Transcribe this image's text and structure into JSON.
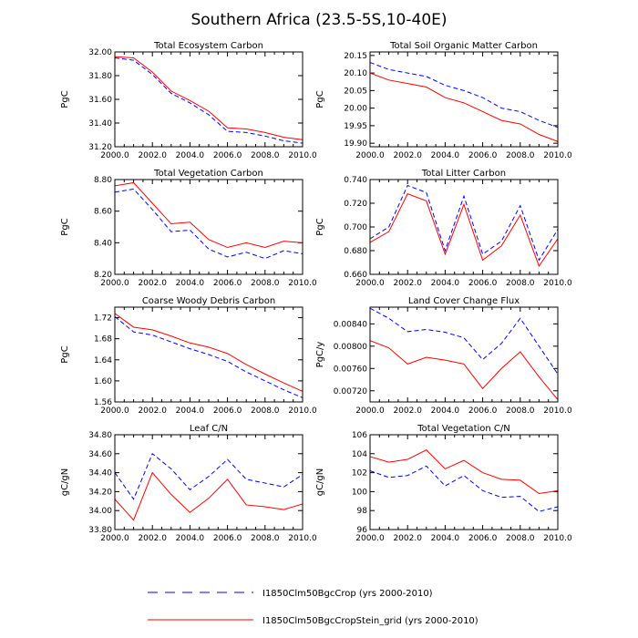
{
  "figure": {
    "title": "Southern Africa (23.5-5S,10-40E)"
  },
  "legend": {
    "entries": [
      {
        "label": "I1850Clm50BgcCrop (yrs 2000-2010)",
        "color": "#0000ff",
        "style": "dashed"
      },
      {
        "label": "I1850Clm50BgcCropStein_grid (yrs 2000-2010)",
        "color": "#ff0000",
        "style": "solid"
      }
    ]
  },
  "chart_data": [
    {
      "type": "line",
      "title": "Total Ecosystem Carbon",
      "ylabel": "PgC",
      "xlim": [
        2000,
        2010
      ],
      "ylim": [
        31.2,
        32.0
      ],
      "xticks": [
        "2000.0",
        "2002.0",
        "2004.0",
        "2006.0",
        "2008.0",
        "2010.0"
      ],
      "yticks": [
        "31.20",
        "31.40",
        "31.60",
        "31.80",
        "32.00"
      ],
      "x": [
        2000,
        2001,
        2002,
        2003,
        2004,
        2005,
        2006,
        2007,
        2008,
        2009,
        2010
      ],
      "series": [
        {
          "values": [
            31.95,
            31.93,
            31.81,
            31.65,
            31.57,
            31.47,
            31.33,
            31.32,
            31.29,
            31.25,
            31.23
          ]
        },
        {
          "values": [
            31.96,
            31.95,
            31.83,
            31.67,
            31.59,
            31.5,
            31.36,
            31.35,
            31.32,
            31.28,
            31.26
          ]
        }
      ]
    },
    {
      "type": "line",
      "title": "Total Soil Organic Matter Carbon",
      "ylabel": "PgC",
      "xlim": [
        2000,
        2010
      ],
      "ylim": [
        19.89,
        20.16
      ],
      "xticks": [
        "2000.0",
        "2002.0",
        "2004.0",
        "2006.0",
        "2008.0",
        "2010.0"
      ],
      "yticks": [
        "19.90",
        "19.95",
        "20.00",
        "20.05",
        "20.10",
        "20.15"
      ],
      "x": [
        2000,
        2001,
        2002,
        2003,
        2004,
        2005,
        2006,
        2007,
        2008,
        2009,
        2010
      ],
      "series": [
        {
          "values": [
            20.13,
            20.11,
            20.1,
            20.09,
            20.065,
            20.05,
            20.03,
            20.0,
            19.99,
            19.965,
            19.945
          ]
        },
        {
          "values": [
            20.1,
            20.08,
            20.07,
            20.06,
            20.03,
            20.015,
            19.99,
            19.965,
            19.955,
            19.925,
            19.905
          ]
        }
      ]
    },
    {
      "type": "line",
      "title": "Total Vegetation Carbon",
      "ylabel": "PgC",
      "xlim": [
        2000,
        2010
      ],
      "ylim": [
        8.2,
        8.8
      ],
      "xticks": [
        "2000.0",
        "2002.0",
        "2004.0",
        "2006.0",
        "2008.0",
        "2010.0"
      ],
      "yticks": [
        "8.20",
        "8.40",
        "8.60",
        "8.80"
      ],
      "x": [
        2000,
        2001,
        2002,
        2003,
        2004,
        2005,
        2006,
        2007,
        2008,
        2009,
        2010
      ],
      "series": [
        {
          "values": [
            8.72,
            8.74,
            8.61,
            8.47,
            8.48,
            8.36,
            8.31,
            8.34,
            8.3,
            8.35,
            8.33
          ]
        },
        {
          "values": [
            8.76,
            8.78,
            8.65,
            8.52,
            8.53,
            8.42,
            8.37,
            8.4,
            8.37,
            8.41,
            8.4
          ]
        }
      ]
    },
    {
      "type": "line",
      "title": "Total Litter Carbon",
      "ylabel": "PgC",
      "xlim": [
        2000,
        2010
      ],
      "ylim": [
        0.66,
        0.74
      ],
      "xticks": [
        "2000.0",
        "2002.0",
        "2004.0",
        "2006.0",
        "2008.0",
        "2010.0"
      ],
      "yticks": [
        "0.660",
        "0.680",
        "0.700",
        "0.720",
        "0.740"
      ],
      "x": [
        2000,
        2001,
        2002,
        2003,
        2004,
        2005,
        2006,
        2007,
        2008,
        2009,
        2010
      ],
      "series": [
        {
          "values": [
            0.69,
            0.7,
            0.735,
            0.729,
            0.68,
            0.726,
            0.677,
            0.688,
            0.718,
            0.672,
            0.698
          ]
        },
        {
          "values": [
            0.687,
            0.696,
            0.728,
            0.722,
            0.677,
            0.719,
            0.672,
            0.684,
            0.71,
            0.667,
            0.69
          ]
        }
      ]
    },
    {
      "type": "line",
      "title": "Coarse Woody Debris Carbon",
      "ylabel": "PgC",
      "xlim": [
        2000,
        2010
      ],
      "ylim": [
        1.56,
        1.74
      ],
      "xticks": [
        "2000.0",
        "2002.0",
        "2004.0",
        "2006.0",
        "2008.0",
        "2010.0"
      ],
      "yticks": [
        "1.56",
        "1.60",
        "1.64",
        "1.68",
        "1.72"
      ],
      "x": [
        2000,
        2001,
        2002,
        2003,
        2004,
        2005,
        2006,
        2007,
        2008,
        2009,
        2010
      ],
      "series": [
        {
          "values": [
            1.722,
            1.693,
            1.687,
            1.674,
            1.661,
            1.65,
            1.637,
            1.617,
            1.6,
            1.583,
            1.568
          ]
        },
        {
          "values": [
            1.728,
            1.702,
            1.697,
            1.685,
            1.672,
            1.664,
            1.652,
            1.631,
            1.613,
            1.596,
            1.58
          ]
        }
      ]
    },
    {
      "type": "line",
      "title": "Land Cover Change Flux",
      "ylabel": "PgC/y",
      "xlim": [
        2000,
        2010
      ],
      "ylim": [
        0.007,
        0.0087
      ],
      "xticks": [
        "2000.0",
        "2002.0",
        "2004.0",
        "2006.0",
        "2008.0",
        "2010.0"
      ],
      "yticks": [
        "0.00720",
        "0.00760",
        "0.00800",
        "0.00840"
      ],
      "x": [
        2000,
        2001,
        2002,
        2003,
        2004,
        2005,
        2006,
        2007,
        2008,
        2009,
        2010
      ],
      "series": [
        {
          "values": [
            0.00868,
            0.0085,
            0.00826,
            0.0083,
            0.00825,
            0.00815,
            0.00776,
            0.00805,
            0.0085,
            0.008,
            0.0075
          ]
        },
        {
          "values": [
            0.0081,
            0.00797,
            0.00768,
            0.0078,
            0.00775,
            0.00768,
            0.00724,
            0.0076,
            0.0079,
            0.00745,
            0.00704
          ]
        }
      ]
    },
    {
      "type": "line",
      "title": "Leaf C/N",
      "ylabel": "gC/gN",
      "xlim": [
        2000,
        2010
      ],
      "ylim": [
        33.8,
        34.8
      ],
      "xticks": [
        "2000.0",
        "2002.0",
        "2004.0",
        "2006.0",
        "2008.0",
        "2010.0"
      ],
      "yticks": [
        "33.80",
        "34.00",
        "34.20",
        "34.40",
        "34.60",
        "34.80"
      ],
      "x": [
        2000,
        2001,
        2002,
        2003,
        2004,
        2005,
        2006,
        2007,
        2008,
        2009,
        2010
      ],
      "series": [
        {
          "values": [
            34.4,
            34.12,
            34.6,
            34.44,
            34.22,
            34.36,
            34.54,
            34.33,
            34.29,
            34.25,
            34.38
          ]
        },
        {
          "values": [
            34.12,
            33.9,
            34.4,
            34.17,
            33.98,
            34.13,
            34.33,
            34.06,
            34.04,
            34.01,
            34.07
          ]
        }
      ]
    },
    {
      "type": "line",
      "title": "Total Vegetation C/N",
      "ylabel": "gC/gN",
      "xlim": [
        2000,
        2010
      ],
      "ylim": [
        96,
        106
      ],
      "xticks": [
        "2000.0",
        "2002.0",
        "2004.0",
        "2006.0",
        "2008.0",
        "2010.0"
      ],
      "yticks": [
        "96",
        "98",
        "100",
        "102",
        "104",
        "106"
      ],
      "x": [
        2000,
        2001,
        2002,
        2003,
        2004,
        2005,
        2006,
        2007,
        2008,
        2009,
        2010
      ],
      "series": [
        {
          "values": [
            102.2,
            101.5,
            101.7,
            102.7,
            100.6,
            101.7,
            100.1,
            99.4,
            99.5,
            97.9,
            98.4
          ]
        },
        {
          "values": [
            103.7,
            103.1,
            103.4,
            104.4,
            102.4,
            103.3,
            102.0,
            101.3,
            101.2,
            99.8,
            100.1
          ]
        }
      ]
    }
  ]
}
